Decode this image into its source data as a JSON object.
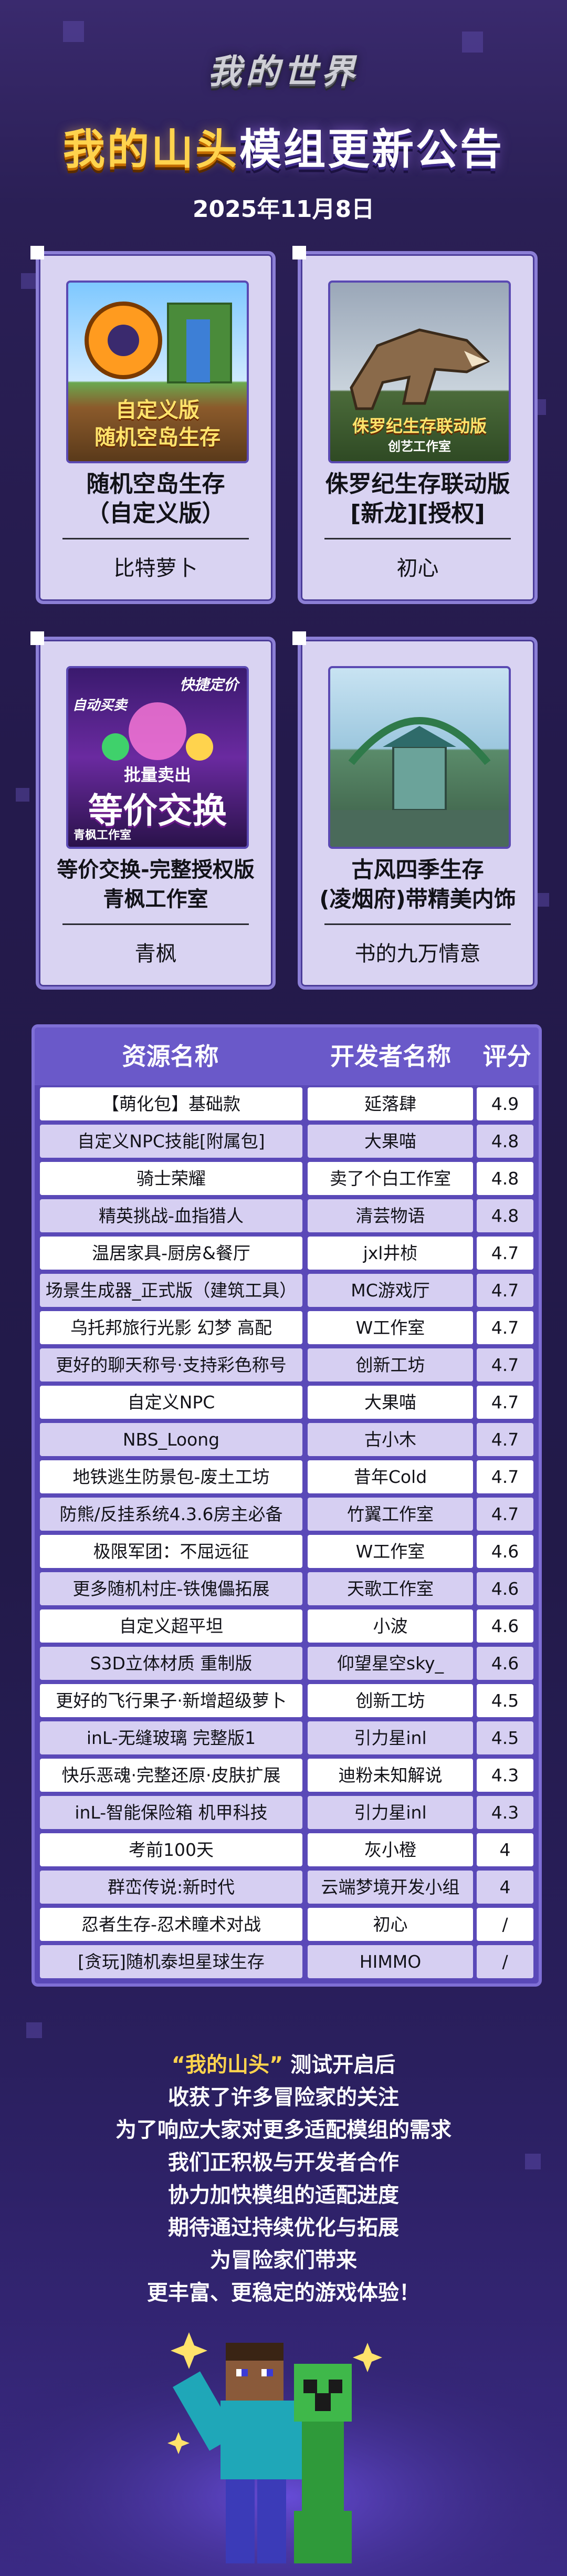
{
  "header": {
    "logo": "我的世界",
    "title_highlight": "我的山头",
    "title_rest": "模组更新公告",
    "date": "2025年11月8日"
  },
  "cards": [
    {
      "title_line1": "随机空岛生存",
      "title_line2": "（自定义版）",
      "author": "比特萝卜",
      "thumb_caption1": "自定义版",
      "thumb_caption2": "随机空岛生存"
    },
    {
      "title_line1": "侏罗纪生存联动版",
      "title_line2": "[新龙][授权]",
      "author": "初心",
      "thumb_caption1": "侏罗纪生存联动版",
      "thumb_caption2": "创艺工作室"
    },
    {
      "title_line1": "等价交换-完整授权版",
      "title_line2": "青枫工作室",
      "author": "青枫",
      "thumb_caption1": "快捷定价",
      "thumb_caption2": "自动买卖",
      "thumb_caption3": "批量卖出",
      "thumb_caption4": "等价交换",
      "thumb_caption5": "青枫工作室"
    },
    {
      "title_line1": "古风四季生存",
      "title_line2": "(凌烟府)带精美内饰",
      "author": "书的九万情意"
    }
  ],
  "table": {
    "headers": [
      "资源名称",
      "开发者名称",
      "评分"
    ],
    "rows": [
      [
        "【萌化包】基础款",
        "延落肆",
        "4.9"
      ],
      [
        "自定义NPC技能[附属包]",
        "大果喵",
        "4.8"
      ],
      [
        "骑士荣耀",
        "卖了个白工作室",
        "4.8"
      ],
      [
        "精英挑战-血指猎人",
        "清芸物语",
        "4.8"
      ],
      [
        "温居家具-厨房&餐厅",
        "jxl井桢",
        "4.7"
      ],
      [
        "场景生成器_正式版（建筑工具）",
        "MC游戏厅",
        "4.7"
      ],
      [
        "乌托邦旅行光影 幻梦 高配",
        "W工作室",
        "4.7"
      ],
      [
        "更好的聊天称号·支持彩色称号",
        "创新工坊",
        "4.7"
      ],
      [
        "自定义NPC",
        "大果喵",
        "4.7"
      ],
      [
        "NBS_Loong",
        "古小木",
        "4.7"
      ],
      [
        "地铁逃生防景包-废土工坊",
        "昔年Cold",
        "4.7"
      ],
      [
        "防熊/反挂系统4.3.6房主必备",
        "竹翼工作室",
        "4.7"
      ],
      [
        "极限军团：不屈远征",
        "W工作室",
        "4.6"
      ],
      [
        "更多随机村庄-铁傀儡拓展",
        "天歌工作室",
        "4.6"
      ],
      [
        "自定义超平坦",
        "小波",
        "4.6"
      ],
      [
        "S3D立体材质 重制版",
        "仰望星空sky_",
        "4.6"
      ],
      [
        "更好的飞行果子·新增超级萝卜",
        "创新工坊",
        "4.5"
      ],
      [
        "inL-无缝玻璃 完整版1",
        "引力星inl",
        "4.5"
      ],
      [
        "快乐恶魂·完整还原·皮肤扩展",
        "迪粉未知解说",
        "4.3"
      ],
      [
        "inL-智能保险箱 机甲科技",
        "引力星inl",
        "4.3"
      ],
      [
        "考前100天",
        "灰小橙",
        "4"
      ],
      [
        "群峦传说:新时代",
        "云端梦境开发小组",
        "4"
      ],
      [
        "忍者生存-忍术瞳术对战",
        "初心",
        "/"
      ],
      [
        "[贪玩]随机泰坦星球生存",
        "HIMMO",
        "/"
      ]
    ]
  },
  "message": {
    "quote": "“我的山头”",
    "line1_rest": "测试开启后",
    "lines": [
      "收获了许多冒险家的关注",
      "为了响应大家对更多适配模组的需求",
      "我们正积极与开发者合作",
      "协力加快模组的适配进度",
      "期待通过持续优化与拓展",
      "为冒险家们带来",
      "更丰富、更稳定的游戏体验！"
    ]
  },
  "colors": {
    "accent_gold": "#ffd34d",
    "card_bg": "#d9d3f2",
    "table_header": "#6a59c9",
    "table_alt_row": "#d6cff2"
  }
}
